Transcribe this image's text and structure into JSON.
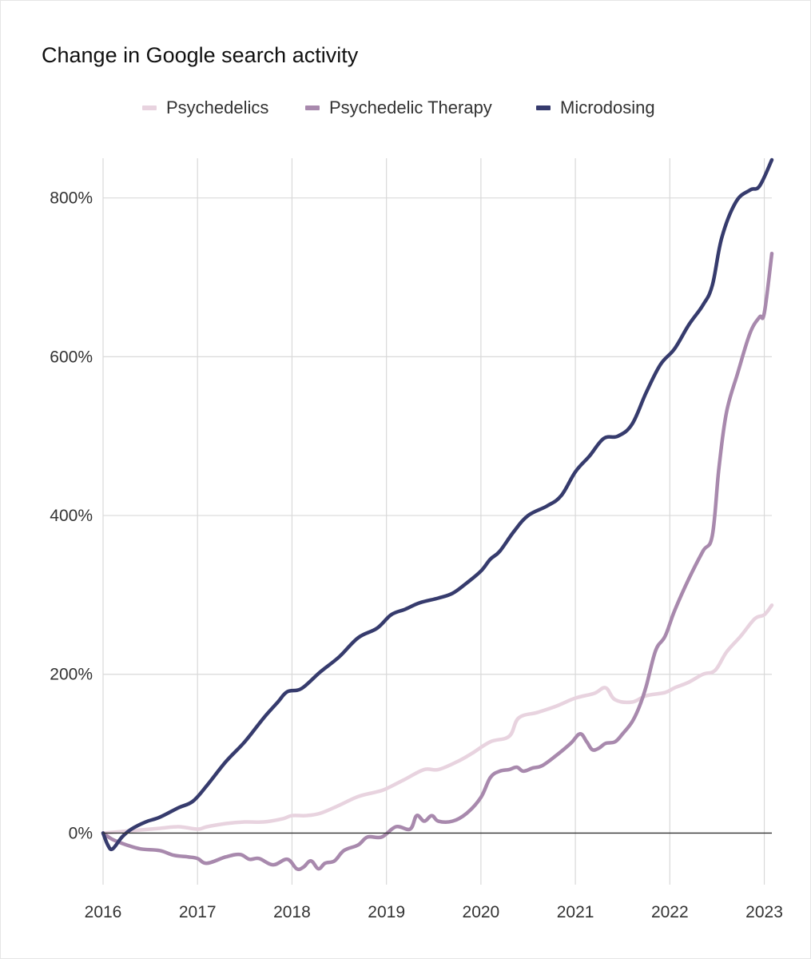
{
  "chart_data": {
    "type": "line",
    "title": "Change in Google search activity",
    "xlabel": "",
    "ylabel": "",
    "xlim": [
      2016.0,
      2023.08
    ],
    "ylim": [
      -65,
      850
    ],
    "x_ticks": [
      2016,
      2017,
      2018,
      2019,
      2020,
      2021,
      2022,
      2023
    ],
    "x_tick_labels": [
      "2016",
      "2017",
      "2018",
      "2019",
      "2020",
      "2021",
      "2022",
      "2023"
    ],
    "y_ticks": [
      0,
      200,
      400,
      600,
      800
    ],
    "y_tick_labels": [
      "0%",
      "200%",
      "400%",
      "600%",
      "800%"
    ],
    "grid": true,
    "legend_position": "top",
    "series": [
      {
        "name": "Psychedelics",
        "color": "#e8d3df",
        "points": [
          [
            2016.0,
            0
          ],
          [
            2016.3,
            3
          ],
          [
            2016.6,
            6
          ],
          [
            2016.8,
            8
          ],
          [
            2017.0,
            5
          ],
          [
            2017.1,
            8
          ],
          [
            2017.3,
            12
          ],
          [
            2017.5,
            14
          ],
          [
            2017.7,
            14
          ],
          [
            2017.9,
            18
          ],
          [
            2018.0,
            22
          ],
          [
            2018.15,
            22
          ],
          [
            2018.3,
            25
          ],
          [
            2018.5,
            35
          ],
          [
            2018.7,
            46
          ],
          [
            2018.9,
            52
          ],
          [
            2019.0,
            56
          ],
          [
            2019.2,
            68
          ],
          [
            2019.4,
            80
          ],
          [
            2019.55,
            80
          ],
          [
            2019.75,
            90
          ],
          [
            2019.9,
            100
          ],
          [
            2020.1,
            115
          ],
          [
            2020.3,
            122
          ],
          [
            2020.4,
            145
          ],
          [
            2020.6,
            152
          ],
          [
            2020.8,
            160
          ],
          [
            2021.0,
            170
          ],
          [
            2021.2,
            176
          ],
          [
            2021.32,
            183
          ],
          [
            2021.42,
            168
          ],
          [
            2021.6,
            165
          ],
          [
            2021.75,
            173
          ],
          [
            2021.95,
            177
          ],
          [
            2022.05,
            183
          ],
          [
            2022.2,
            190
          ],
          [
            2022.35,
            200
          ],
          [
            2022.48,
            205
          ],
          [
            2022.6,
            228
          ],
          [
            2022.75,
            248
          ],
          [
            2022.9,
            270
          ],
          [
            2023.0,
            275
          ],
          [
            2023.08,
            287
          ]
        ]
      },
      {
        "name": "Psychedelic Therapy",
        "color": "#a889ad",
        "points": [
          [
            2016.0,
            0
          ],
          [
            2016.1,
            -8
          ],
          [
            2016.25,
            -15
          ],
          [
            2016.4,
            -20
          ],
          [
            2016.6,
            -22
          ],
          [
            2016.75,
            -28
          ],
          [
            2016.9,
            -30
          ],
          [
            2017.0,
            -32
          ],
          [
            2017.1,
            -38
          ],
          [
            2017.3,
            -30
          ],
          [
            2017.45,
            -27
          ],
          [
            2017.55,
            -33
          ],
          [
            2017.65,
            -32
          ],
          [
            2017.8,
            -40
          ],
          [
            2017.95,
            -33
          ],
          [
            2018.05,
            -45
          ],
          [
            2018.12,
            -43
          ],
          [
            2018.2,
            -35
          ],
          [
            2018.28,
            -45
          ],
          [
            2018.35,
            -38
          ],
          [
            2018.45,
            -35
          ],
          [
            2018.55,
            -22
          ],
          [
            2018.7,
            -15
          ],
          [
            2018.8,
            -5
          ],
          [
            2018.95,
            -5
          ],
          [
            2019.1,
            8
          ],
          [
            2019.25,
            5
          ],
          [
            2019.32,
            22
          ],
          [
            2019.4,
            15
          ],
          [
            2019.48,
            22
          ],
          [
            2019.55,
            15
          ],
          [
            2019.7,
            15
          ],
          [
            2019.85,
            25
          ],
          [
            2020.0,
            45
          ],
          [
            2020.1,
            70
          ],
          [
            2020.2,
            78
          ],
          [
            2020.3,
            80
          ],
          [
            2020.38,
            83
          ],
          [
            2020.45,
            78
          ],
          [
            2020.55,
            82
          ],
          [
            2020.65,
            85
          ],
          [
            2020.8,
            98
          ],
          [
            2020.95,
            113
          ],
          [
            2021.05,
            125
          ],
          [
            2021.12,
            115
          ],
          [
            2021.18,
            105
          ],
          [
            2021.25,
            107
          ],
          [
            2021.32,
            113
          ],
          [
            2021.42,
            115
          ],
          [
            2021.5,
            125
          ],
          [
            2021.6,
            140
          ],
          [
            2021.68,
            160
          ],
          [
            2021.75,
            185
          ],
          [
            2021.85,
            230
          ],
          [
            2021.95,
            248
          ],
          [
            2022.05,
            280
          ],
          [
            2022.2,
            320
          ],
          [
            2022.35,
            355
          ],
          [
            2022.45,
            375
          ],
          [
            2022.52,
            460
          ],
          [
            2022.6,
            530
          ],
          [
            2022.72,
            580
          ],
          [
            2022.85,
            630
          ],
          [
            2022.95,
            650
          ],
          [
            2023.0,
            655
          ],
          [
            2023.08,
            730
          ]
        ]
      },
      {
        "name": "Microdosing",
        "color": "#363b6d",
        "points": [
          [
            2016.0,
            0
          ],
          [
            2016.05,
            -15
          ],
          [
            2016.1,
            -20
          ],
          [
            2016.2,
            -5
          ],
          [
            2016.3,
            5
          ],
          [
            2016.45,
            14
          ],
          [
            2016.6,
            20
          ],
          [
            2016.8,
            32
          ],
          [
            2016.95,
            40
          ],
          [
            2017.1,
            60
          ],
          [
            2017.3,
            90
          ],
          [
            2017.5,
            115
          ],
          [
            2017.7,
            145
          ],
          [
            2017.85,
            165
          ],
          [
            2017.95,
            178
          ],
          [
            2018.1,
            182
          ],
          [
            2018.3,
            203
          ],
          [
            2018.5,
            222
          ],
          [
            2018.7,
            246
          ],
          [
            2018.9,
            258
          ],
          [
            2019.05,
            275
          ],
          [
            2019.2,
            282
          ],
          [
            2019.35,
            290
          ],
          [
            2019.55,
            296
          ],
          [
            2019.7,
            302
          ],
          [
            2019.85,
            315
          ],
          [
            2020.0,
            330
          ],
          [
            2020.1,
            345
          ],
          [
            2020.2,
            355
          ],
          [
            2020.35,
            380
          ],
          [
            2020.5,
            400
          ],
          [
            2020.7,
            412
          ],
          [
            2020.85,
            425
          ],
          [
            2021.0,
            455
          ],
          [
            2021.15,
            475
          ],
          [
            2021.3,
            497
          ],
          [
            2021.45,
            500
          ],
          [
            2021.6,
            515
          ],
          [
            2021.75,
            555
          ],
          [
            2021.9,
            590
          ],
          [
            2022.05,
            610
          ],
          [
            2022.2,
            640
          ],
          [
            2022.35,
            665
          ],
          [
            2022.45,
            690
          ],
          [
            2022.55,
            750
          ],
          [
            2022.7,
            795
          ],
          [
            2022.85,
            810
          ],
          [
            2022.95,
            815
          ],
          [
            2023.08,
            848
          ]
        ]
      }
    ]
  }
}
